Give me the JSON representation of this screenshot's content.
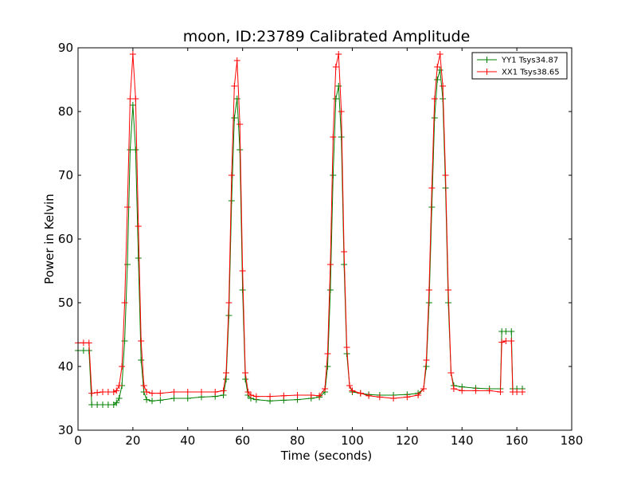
{
  "chart_data": {
    "type": "line",
    "title": "moon, ID:23789 Calibrated Amplitude",
    "xlabel": "Time (seconds)",
    "ylabel": "Power in Kelvin",
    "xlim": [
      0,
      180
    ],
    "ylim": [
      30,
      90
    ],
    "xticks": [
      0,
      20,
      40,
      60,
      80,
      100,
      120,
      140,
      160,
      180
    ],
    "yticks": [
      30,
      40,
      50,
      60,
      70,
      80,
      90
    ],
    "grid": false,
    "legend_position": "top-right",
    "marker": "+",
    "series": [
      {
        "name": "YY1 Tsys34.87",
        "color": "#008000",
        "points": [
          [
            0,
            42.5
          ],
          [
            2,
            42.5
          ],
          [
            4,
            42.5
          ],
          [
            5,
            34
          ],
          [
            7,
            34
          ],
          [
            9,
            34
          ],
          [
            11,
            34
          ],
          [
            13,
            34
          ],
          [
            14,
            34.3
          ],
          [
            15,
            35
          ],
          [
            16,
            37
          ],
          [
            17,
            44
          ],
          [
            18,
            56
          ],
          [
            19,
            74
          ],
          [
            20,
            81
          ],
          [
            21,
            74
          ],
          [
            22,
            57
          ],
          [
            23,
            41
          ],
          [
            24,
            36
          ],
          [
            25,
            34.8
          ],
          [
            27,
            34.6
          ],
          [
            30,
            34.7
          ],
          [
            35,
            35
          ],
          [
            40,
            35
          ],
          [
            45,
            35.2
          ],
          [
            50,
            35.3
          ],
          [
            53,
            35.5
          ],
          [
            54,
            38
          ],
          [
            55,
            48
          ],
          [
            56,
            66
          ],
          [
            57,
            79
          ],
          [
            58,
            82
          ],
          [
            59,
            74
          ],
          [
            60,
            52
          ],
          [
            61,
            38
          ],
          [
            62,
            35.5
          ],
          [
            63,
            35
          ],
          [
            65,
            34.8
          ],
          [
            70,
            34.6
          ],
          [
            75,
            34.7
          ],
          [
            80,
            34.8
          ],
          [
            85,
            35
          ],
          [
            88,
            35.2
          ],
          [
            90,
            36
          ],
          [
            91,
            40
          ],
          [
            92,
            52
          ],
          [
            93,
            70
          ],
          [
            94,
            82
          ],
          [
            95,
            84
          ],
          [
            96,
            76
          ],
          [
            97,
            56
          ],
          [
            98,
            42
          ],
          [
            99,
            37
          ],
          [
            100,
            36
          ],
          [
            103,
            35.8
          ],
          [
            106,
            35.6
          ],
          [
            110,
            35.5
          ],
          [
            115,
            35.5
          ],
          [
            120,
            35.6
          ],
          [
            124,
            35.8
          ],
          [
            126,
            36.5
          ],
          [
            127,
            40
          ],
          [
            128,
            50
          ],
          [
            129,
            65
          ],
          [
            130,
            79
          ],
          [
            131,
            85
          ],
          [
            132,
            86.5
          ],
          [
            133,
            82
          ],
          [
            134,
            68
          ],
          [
            135,
            50
          ],
          [
            136,
            39
          ],
          [
            137,
            37
          ],
          [
            140,
            36.8
          ],
          [
            145,
            36.6
          ],
          [
            150,
            36.5
          ],
          [
            154,
            36.5
          ],
          [
            154.5,
            45.5
          ],
          [
            156,
            45.5
          ],
          [
            158,
            45.5
          ],
          [
            158.5,
            36.5
          ],
          [
            160,
            36.5
          ],
          [
            162,
            36.5
          ]
        ]
      },
      {
        "name": "XX1 Tsys38.65",
        "color": "#ff0000",
        "points": [
          [
            0,
            43.7
          ],
          [
            2,
            43.7
          ],
          [
            4,
            43.7
          ],
          [
            5,
            35.8
          ],
          [
            7,
            35.9
          ],
          [
            9,
            36
          ],
          [
            11,
            36
          ],
          [
            13,
            36
          ],
          [
            14,
            36.2
          ],
          [
            15,
            37
          ],
          [
            16,
            40
          ],
          [
            17,
            50
          ],
          [
            18,
            65
          ],
          [
            19,
            82
          ],
          [
            20,
            89
          ],
          [
            21,
            82
          ],
          [
            22,
            62
          ],
          [
            23,
            44
          ],
          [
            24,
            37
          ],
          [
            25,
            36
          ],
          [
            27,
            35.8
          ],
          [
            30,
            35.8
          ],
          [
            35,
            36
          ],
          [
            40,
            36
          ],
          [
            45,
            36
          ],
          [
            50,
            36
          ],
          [
            53,
            36.2
          ],
          [
            54,
            39
          ],
          [
            55,
            50
          ],
          [
            56,
            70
          ],
          [
            57,
            84
          ],
          [
            58,
            88
          ],
          [
            59,
            78
          ],
          [
            60,
            55
          ],
          [
            61,
            39
          ],
          [
            62,
            36
          ],
          [
            63,
            35.5
          ],
          [
            65,
            35.3
          ],
          [
            70,
            35.3
          ],
          [
            75,
            35.4
          ],
          [
            80,
            35.5
          ],
          [
            85,
            35.5
          ],
          [
            88,
            35.4
          ],
          [
            90,
            36.5
          ],
          [
            91,
            42
          ],
          [
            92,
            56
          ],
          [
            93,
            76
          ],
          [
            94,
            87
          ],
          [
            95,
            89
          ],
          [
            96,
            80
          ],
          [
            97,
            58
          ],
          [
            98,
            43
          ],
          [
            99,
            37
          ],
          [
            100,
            36.2
          ],
          [
            103,
            35.8
          ],
          [
            106,
            35.4
          ],
          [
            110,
            35.2
          ],
          [
            115,
            35
          ],
          [
            120,
            35.2
          ],
          [
            124,
            35.5
          ],
          [
            126,
            36.5
          ],
          [
            127,
            41
          ],
          [
            128,
            52
          ],
          [
            129,
            68
          ],
          [
            130,
            82
          ],
          [
            131,
            87
          ],
          [
            132,
            89
          ],
          [
            133,
            84
          ],
          [
            134,
            70
          ],
          [
            135,
            52
          ],
          [
            136,
            39
          ],
          [
            137,
            36.5
          ],
          [
            140,
            36.2
          ],
          [
            145,
            36.2
          ],
          [
            150,
            36.2
          ],
          [
            154,
            36
          ],
          [
            154.5,
            43.8
          ],
          [
            156,
            44
          ],
          [
            158,
            44
          ],
          [
            158.5,
            36
          ],
          [
            160,
            36
          ],
          [
            162,
            36
          ]
        ]
      }
    ]
  }
}
